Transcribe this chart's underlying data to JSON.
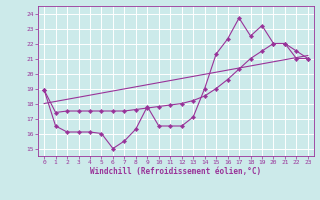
{
  "xlabel": "Windchill (Refroidissement éolien,°C)",
  "xlim": [
    -0.5,
    23.5
  ],
  "ylim": [
    14.5,
    24.5
  ],
  "yticks": [
    15,
    16,
    17,
    18,
    19,
    20,
    21,
    22,
    23,
    24
  ],
  "xticks": [
    0,
    1,
    2,
    3,
    4,
    5,
    6,
    7,
    8,
    9,
    10,
    11,
    12,
    13,
    14,
    15,
    16,
    17,
    18,
    19,
    20,
    21,
    22,
    23
  ],
  "bg_color": "#cceaea",
  "line_color": "#993399",
  "grid_color": "#aadddd",
  "line1_x": [
    0,
    1,
    2,
    3,
    4,
    5,
    6,
    7,
    8,
    9,
    10,
    11,
    12,
    13,
    14,
    15,
    16,
    17,
    18,
    19,
    20,
    21,
    22,
    23
  ],
  "line1_y": [
    18.9,
    17.4,
    17.5,
    17.5,
    17.5,
    17.5,
    17.5,
    17.5,
    17.6,
    17.7,
    17.8,
    17.9,
    18.0,
    18.2,
    18.5,
    19.0,
    19.6,
    20.3,
    21.0,
    21.5,
    22.0,
    22.0,
    21.5,
    21.0
  ],
  "line2_x": [
    0,
    1,
    2,
    3,
    4,
    5,
    6,
    7,
    8,
    9,
    10,
    11,
    12,
    13,
    14,
    15,
    16,
    17,
    18,
    19,
    20,
    21,
    22,
    23
  ],
  "line2_y": [
    18.9,
    16.5,
    16.1,
    16.1,
    16.1,
    16.0,
    15.0,
    15.5,
    16.3,
    17.8,
    16.5,
    16.5,
    16.5,
    17.1,
    19.0,
    21.3,
    22.3,
    23.7,
    22.5,
    23.2,
    22.0,
    22.0,
    21.0,
    21.0
  ],
  "line3_x": [
    0,
    23
  ],
  "line3_y": [
    18.0,
    21.2
  ]
}
